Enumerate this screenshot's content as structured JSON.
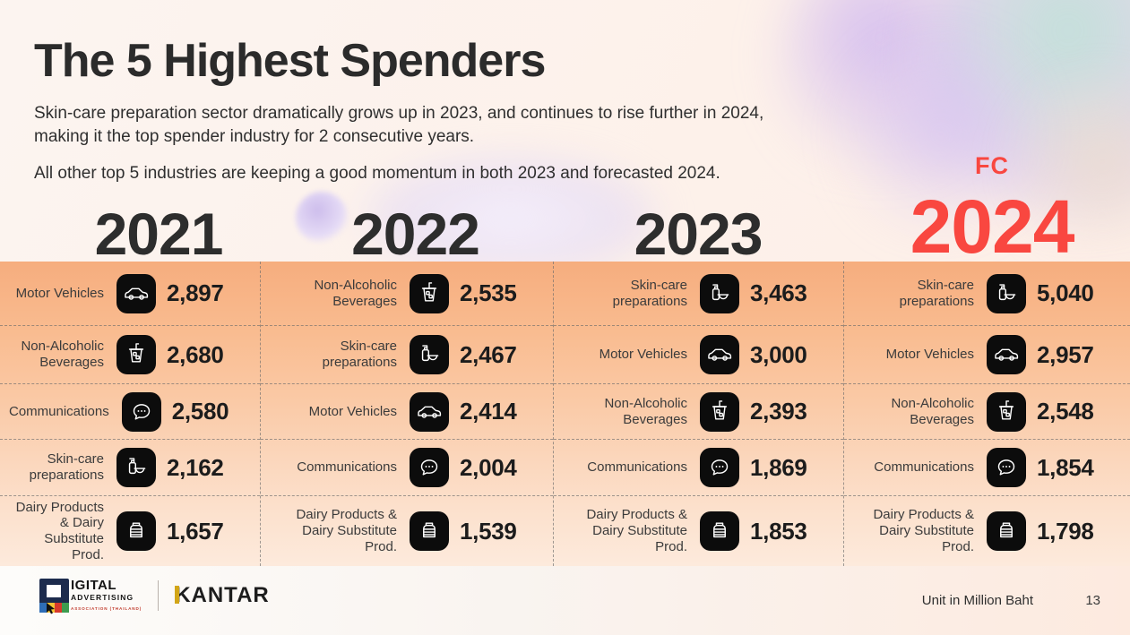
{
  "slide": {
    "title": "The 5 Highest Spenders",
    "subtitle": "Skin-care preparation sector dramatically grows up in 2023, and continues to rise further in 2024,\nmaking it the top spender industry for 2 consecutive years.",
    "note": "All other top 5 industries are keeping a good momentum in both 2023 and forecasted 2024.",
    "fc_label": "FC",
    "unit_note": "Unit in Million Baht",
    "page_number": "13"
  },
  "chart_data": {
    "type": "table",
    "title": "The 5 Highest Spenders",
    "unit": "Million Baht",
    "columns": [
      {
        "year": "2021",
        "forecast": false,
        "rows": [
          {
            "industry": "Motor Vehicles",
            "icon": "car-icon",
            "value": 2897,
            "display": "2,897"
          },
          {
            "industry": "Non-Alcoholic Beverages",
            "icon": "beverage-icon",
            "value": 2680,
            "display": "2,680"
          },
          {
            "industry": "Communications",
            "icon": "chat-icon",
            "value": 2580,
            "display": "2,580"
          },
          {
            "industry": "Skin-care preparations",
            "icon": "skincare-icon",
            "value": 2162,
            "display": "2,162"
          },
          {
            "industry": "Dairy Products & Dairy Substitute Prod.",
            "icon": "dairy-icon",
            "value": 1657,
            "display": "1,657"
          }
        ]
      },
      {
        "year": "2022",
        "forecast": false,
        "rows": [
          {
            "industry": "Non-Alcoholic Beverages",
            "icon": "beverage-icon",
            "value": 2535,
            "display": "2,535"
          },
          {
            "industry": "Skin-care preparations",
            "icon": "skincare-icon",
            "value": 2467,
            "display": "2,467"
          },
          {
            "industry": "Motor Vehicles",
            "icon": "car-icon",
            "value": 2414,
            "display": "2,414"
          },
          {
            "industry": "Communications",
            "icon": "chat-icon",
            "value": 2004,
            "display": "2,004"
          },
          {
            "industry": "Dairy Products & Dairy Substitute Prod.",
            "icon": "dairy-icon",
            "value": 1539,
            "display": "1,539"
          }
        ]
      },
      {
        "year": "2023",
        "forecast": false,
        "rows": [
          {
            "industry": "Skin-care preparations",
            "icon": "skincare-icon",
            "value": 3463,
            "display": "3,463"
          },
          {
            "industry": "Motor Vehicles",
            "icon": "car-icon",
            "value": 3000,
            "display": "3,000"
          },
          {
            "industry": "Non-Alcoholic Beverages",
            "icon": "beverage-icon",
            "value": 2393,
            "display": "2,393"
          },
          {
            "industry": "Communications",
            "icon": "chat-icon",
            "value": 1869,
            "display": "1,869"
          },
          {
            "industry": "Dairy Products & Dairy Substitute Prod.",
            "icon": "dairy-icon",
            "value": 1853,
            "display": "1,853"
          }
        ]
      },
      {
        "year": "2024",
        "forecast": true,
        "rows": [
          {
            "industry": "Skin-care preparations",
            "icon": "skincare-icon",
            "value": 5040,
            "display": "5,040"
          },
          {
            "industry": "Motor Vehicles",
            "icon": "car-icon",
            "value": 2957,
            "display": "2,957"
          },
          {
            "industry": "Non-Alcoholic Beverages",
            "icon": "beverage-icon",
            "value": 2548,
            "display": "2,548"
          },
          {
            "industry": "Communications",
            "icon": "chat-icon",
            "value": 1854,
            "display": "1,854"
          },
          {
            "industry": "Dairy Products & Dairy Substitute Prod.",
            "icon": "dairy-icon",
            "value": 1798,
            "display": "1,798"
          }
        ]
      }
    ]
  },
  "footer": {
    "daat": {
      "digital": "IGITAL",
      "advertising": "ADVERTISING",
      "association": "ASSOCIATION (THAILAND)"
    },
    "kantar": "KANTAR"
  },
  "colors": {
    "accent_red": "#F94740",
    "year_dark": "#2D2D2D",
    "table_gradient_top": "#F6AD7E",
    "table_gradient_bottom": "#FDEADC",
    "icon_bg": "#0C0C0C"
  }
}
